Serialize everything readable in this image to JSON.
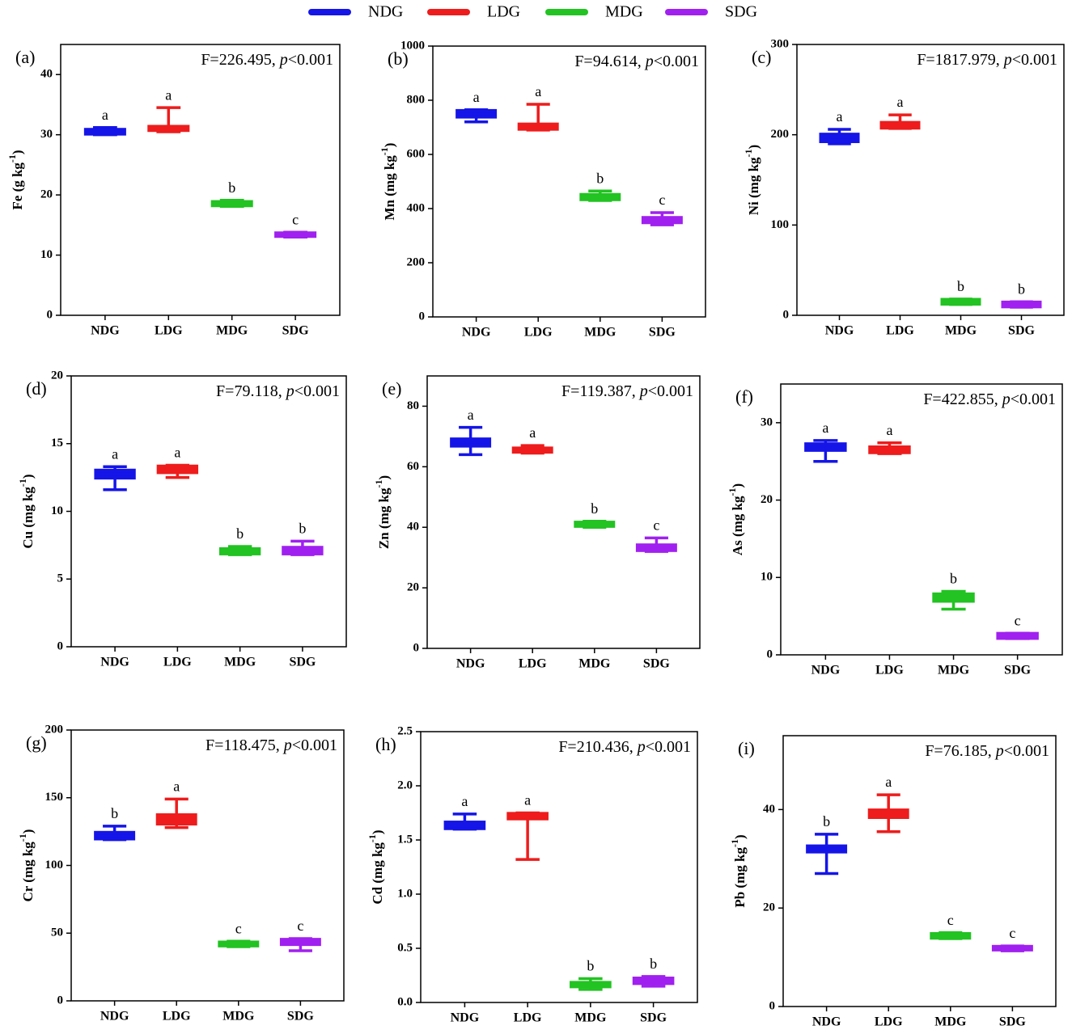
{
  "legend": [
    {
      "name": "NDG",
      "color": "#1515e8"
    },
    {
      "name": "LDG",
      "color": "#ee1c1c"
    },
    {
      "name": "MDG",
      "color": "#22c322"
    },
    {
      "name": "SDG",
      "color": "#a020f0"
    }
  ],
  "chart_data": [
    {
      "type": "box",
      "panel_label": "(a)",
      "annotation": [
        "F=226.495, ",
        "p",
        "<0.001"
      ],
      "ylabel": [
        "Fe (g kg",
        "-1",
        ")"
      ],
      "categories": [
        "NDG",
        "LDG",
        "MDG",
        "SDG"
      ],
      "group_letters": [
        "a",
        "a",
        "b",
        "c"
      ],
      "boxes": [
        {
          "min": 30,
          "q1": 30.2,
          "median": 30.5,
          "q3": 30.8,
          "max": 31.2
        },
        {
          "min": 30.5,
          "q1": 30.8,
          "median": 31.2,
          "q3": 31.3,
          "max": 34.5
        },
        {
          "min": 18.1,
          "q1": 18.3,
          "median": 18.6,
          "q3": 18.8,
          "max": 19.1
        },
        {
          "min": 13,
          "q1": 13.2,
          "median": 13.4,
          "q3": 13.6,
          "max": 13.8
        }
      ],
      "ylim": [
        0,
        45
      ],
      "yticks": [
        0,
        10,
        20,
        30,
        40
      ]
    },
    {
      "type": "box",
      "panel_label": "(b)",
      "annotation": [
        "F=94.614, ",
        "p",
        "<0.001"
      ],
      "ylabel": [
        "Mn (mg kg",
        "-1",
        ")"
      ],
      "categories": [
        "NDG",
        "LDG",
        "MDG",
        "SDG"
      ],
      "group_letters": [
        "a",
        "a",
        "b",
        "c"
      ],
      "boxes": [
        {
          "min": 720,
          "q1": 740,
          "median": 750,
          "q3": 760,
          "max": 765
        },
        {
          "min": 690,
          "q1": 695,
          "median": 705,
          "q3": 710,
          "max": 785
        },
        {
          "min": 430,
          "q1": 435,
          "median": 440,
          "q3": 450,
          "max": 465
        },
        {
          "min": 340,
          "q1": 350,
          "median": 355,
          "q3": 365,
          "max": 385
        }
      ],
      "ylim": [
        0,
        1000
      ],
      "yticks": [
        0,
        200,
        400,
        600,
        800,
        1000
      ]
    },
    {
      "type": "box",
      "panel_label": "(c)",
      "annotation": [
        "F=1817.979, ",
        "p",
        "<0.001"
      ],
      "ylabel": [
        "Ni (mg kg",
        "-1",
        ")"
      ],
      "categories": [
        "NDG",
        "LDG",
        "MDG",
        "SDG"
      ],
      "group_letters": [
        "a",
        "a",
        "b",
        "b"
      ],
      "boxes": [
        {
          "min": 190,
          "q1": 193,
          "median": 197,
          "q3": 200,
          "max": 206
        },
        {
          "min": 207,
          "q1": 208,
          "median": 210,
          "q3": 213,
          "max": 222
        },
        {
          "min": 12,
          "q1": 13,
          "median": 15,
          "q3": 17,
          "max": 18
        },
        {
          "min": 9,
          "q1": 10,
          "median": 12,
          "q3": 14,
          "max": 15
        }
      ],
      "ylim": [
        0,
        300
      ],
      "yticks": [
        0,
        100,
        200,
        300
      ]
    },
    {
      "type": "box",
      "panel_label": "(d)",
      "annotation": [
        "F=79.118, ",
        "p",
        "<0.001"
      ],
      "ylabel": [
        "Cu (mg kg",
        "-1",
        ")"
      ],
      "categories": [
        "NDG",
        "LDG",
        "MDG",
        "SDG"
      ],
      "group_letters": [
        "a",
        "a",
        "b",
        "b"
      ],
      "boxes": [
        {
          "min": 11.6,
          "q1": 12.5,
          "median": 12.8,
          "q3": 13,
          "max": 13.3
        },
        {
          "min": 12.5,
          "q1": 12.9,
          "median": 13.1,
          "q3": 13.3,
          "max": 13.4
        },
        {
          "min": 6.8,
          "q1": 6.9,
          "median": 7,
          "q3": 7.2,
          "max": 7.4
        },
        {
          "min": 6.8,
          "q1": 6.9,
          "median": 7.1,
          "q3": 7.3,
          "max": 7.8
        }
      ],
      "ylim": [
        0,
        20
      ],
      "yticks": [
        0,
        5,
        10,
        15,
        20
      ]
    },
    {
      "type": "box",
      "panel_label": "(e)",
      "annotation": [
        "F=119.387, ",
        "p",
        "<0.001"
      ],
      "ylabel": [
        "Zn (mg kg",
        "-1",
        ")"
      ],
      "categories": [
        "NDG",
        "LDG",
        "MDG",
        "SDG"
      ],
      "group_letters": [
        "a",
        "a",
        "b",
        "c"
      ],
      "boxes": [
        {
          "min": 64,
          "q1": 67,
          "median": 68,
          "q3": 69,
          "max": 73
        },
        {
          "min": 64.5,
          "q1": 65,
          "median": 65.5,
          "q3": 66,
          "max": 67
        },
        {
          "min": 40,
          "q1": 40.5,
          "median": 41,
          "q3": 41.5,
          "max": 42
        },
        {
          "min": 32,
          "q1": 32.5,
          "median": 33,
          "q3": 34,
          "max": 36.5
        }
      ],
      "ylim": [
        0,
        90
      ],
      "yticks": [
        0,
        20,
        40,
        60,
        80
      ]
    },
    {
      "type": "box",
      "panel_label": "(f)",
      "annotation": [
        "F=422.855, ",
        "p",
        "<0.001"
      ],
      "ylabel": [
        "As (mg kg",
        "-1",
        ")"
      ],
      "categories": [
        "NDG",
        "LDG",
        "MDG",
        "SDG"
      ],
      "group_letters": [
        "a",
        "a",
        "b",
        "c"
      ],
      "boxes": [
        {
          "min": 25,
          "q1": 26.5,
          "median": 26.8,
          "q3": 27.2,
          "max": 27.7
        },
        {
          "min": 26,
          "q1": 26.2,
          "median": 26.5,
          "q3": 26.8,
          "max": 27.4
        },
        {
          "min": 5.9,
          "q1": 7,
          "median": 7.4,
          "q3": 7.8,
          "max": 8.2
        },
        {
          "min": 2.1,
          "q1": 2.2,
          "median": 2.4,
          "q3": 2.7,
          "max": 2.8
        }
      ],
      "ylim": [
        0,
        35
      ],
      "yticks": [
        0,
        10,
        20,
        30
      ]
    },
    {
      "type": "box",
      "panel_label": "(g)",
      "annotation": [
        "F=118.475, ",
        "p",
        "<0.001"
      ],
      "ylabel": [
        "Cr (mg kg",
        "-1",
        ")"
      ],
      "categories": [
        "NDG",
        "LDG",
        "MDG",
        "SDG"
      ],
      "group_letters": [
        "b",
        "a",
        "c",
        "c"
      ],
      "boxes": [
        {
          "min": 119,
          "q1": 120,
          "median": 122,
          "q3": 124,
          "max": 129
        },
        {
          "min": 128,
          "q1": 131,
          "median": 134,
          "q3": 137,
          "max": 149
        },
        {
          "min": 40,
          "q1": 41,
          "median": 42,
          "q3": 43,
          "max": 44
        },
        {
          "min": 37,
          "q1": 42,
          "median": 44,
          "q3": 45,
          "max": 46
        }
      ],
      "ylim": [
        0,
        200
      ],
      "yticks": [
        0,
        50,
        100,
        150,
        200
      ]
    },
    {
      "type": "box",
      "panel_label": "(h)",
      "annotation": [
        "F=210.436, ",
        "p",
        "<0.001"
      ],
      "ylabel": [
        "Cd (mg kg",
        "-1",
        ")"
      ],
      "categories": [
        "NDG",
        "LDG",
        "MDG",
        "SDG"
      ],
      "group_letters": [
        "a",
        "a",
        "b",
        "b"
      ],
      "boxes": [
        {
          "min": 1.6,
          "q1": 1.61,
          "median": 1.63,
          "q3": 1.66,
          "max": 1.74
        },
        {
          "min": 1.32,
          "q1": 1.7,
          "median": 1.72,
          "q3": 1.74,
          "max": 1.75
        },
        {
          "min": 0.12,
          "q1": 0.15,
          "median": 0.16,
          "q3": 0.18,
          "max": 0.22
        },
        {
          "min": 0.15,
          "q1": 0.18,
          "median": 0.2,
          "q3": 0.22,
          "max": 0.24
        }
      ],
      "ylim": [
        0,
        2.5
      ],
      "yticks": [
        {
          "value": 0,
          "label": "0.0"
        },
        0.5,
        {
          "value": 1,
          "label": "1.0"
        },
        1.5,
        {
          "value": 2,
          "label": "2.0"
        },
        2.5
      ]
    },
    {
      "type": "box",
      "panel_label": "(i)",
      "annotation": [
        "F=76.185, ",
        "p",
        "<0.001"
      ],
      "ylabel": [
        "Pb (mg kg",
        "-1",
        ")"
      ],
      "categories": [
        "NDG",
        "LDG",
        "MDG",
        "SDG"
      ],
      "group_letters": [
        "b",
        "a",
        "c",
        "c"
      ],
      "boxes": [
        {
          "min": 27,
          "q1": 31.5,
          "median": 32,
          "q3": 32.5,
          "max": 35
        },
        {
          "min": 35.5,
          "q1": 38.5,
          "median": 39,
          "q3": 39.8,
          "max": 43
        },
        {
          "min": 13.8,
          "q1": 14,
          "median": 14.3,
          "q3": 14.7,
          "max": 15
        },
        {
          "min": 11.3,
          "q1": 11.6,
          "median": 11.8,
          "q3": 12.1,
          "max": 12.3
        }
      ],
      "ylim": [
        0,
        55
      ],
      "yticks": [
        0,
        20,
        40
      ]
    }
  ]
}
